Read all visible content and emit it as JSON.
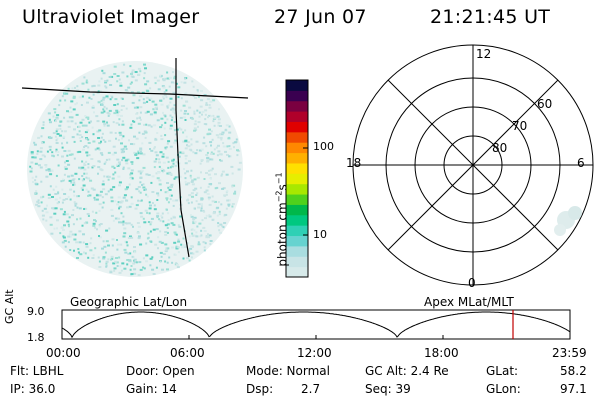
{
  "header": {
    "title": "Ultraviolet Imager",
    "date": "27 Jun 07",
    "time": "21:21:45 UT"
  },
  "colorbar": {
    "label": "photon cm⁻²s⁻¹",
    "label_base": "photon cm",
    "label_exp1": "−2",
    "label_mid": "s",
    "label_exp2": "−1",
    "tick_100": "100",
    "tick_10": "10",
    "colors": [
      "#d7eaea",
      "#c8e4e6",
      "#a9dde0",
      "#66d3d0",
      "#2fd0b5",
      "#00c880",
      "#00b84a",
      "#4fd11c",
      "#a8e800",
      "#e6ee00",
      "#ffe000",
      "#ffb000",
      "#ff8800",
      "#f04a00",
      "#e00000",
      "#b0002a",
      "#7a0040",
      "#3a0050",
      "#0a0a40"
    ]
  },
  "polar": {
    "labels": {
      "top": "12",
      "bottom": "0",
      "left": "18",
      "right": "6",
      "lat60": "60",
      "lat70": "70",
      "lat80": "80"
    }
  },
  "timeline": {
    "left_label": "Geographic Lat/Lon",
    "right_label": "Apex  MLat/MLT",
    "axis_label": "GC Alt",
    "ymax": "9.0",
    "ymin": "1.8",
    "xticks": [
      "00:00",
      "06:00",
      "12:00",
      "18:00",
      "23:59"
    ]
  },
  "info": {
    "flt": "Flt: LBHL",
    "ip": "IP: 36.0",
    "door": "Door: Open",
    "gain": "Gain: 14",
    "mode": "Mode: Normal",
    "dsp_label": "Dsp:",
    "dsp_value": "2.7",
    "gcalt": "GC Alt: 2.4 Re",
    "seq": "Seq: 39",
    "glat_label": "GLat:",
    "glat_value": "58.2",
    "glon_label": "GLon:",
    "glon_value": "97.1"
  }
}
